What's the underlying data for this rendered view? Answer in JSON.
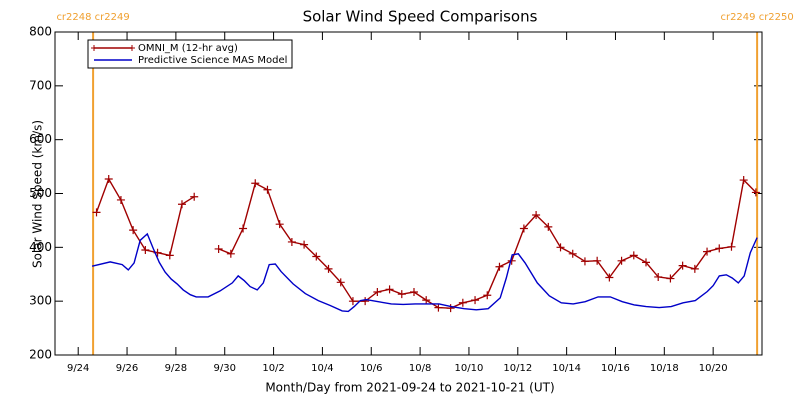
{
  "chart_data": {
    "type": "line",
    "title": "Solar Wind Speed Comparisons",
    "x_label": "Month/Day from 2021-09-24 to 2021-10-21 (UT)",
    "y_label": "Solar Wind Speed (km/s)",
    "xlim": [
      -0.95,
      28
    ],
    "xticks": [
      {
        "value": 0,
        "label": "9/24"
      },
      {
        "value": 2,
        "label": "9/26"
      },
      {
        "value": 4,
        "label": "9/28"
      },
      {
        "value": 6,
        "label": "9/30"
      },
      {
        "value": 8,
        "label": "10/2"
      },
      {
        "value": 10,
        "label": "10/4"
      },
      {
        "value": 12,
        "label": "10/6"
      },
      {
        "value": 14,
        "label": "10/8"
      },
      {
        "value": 16,
        "label": "10/10"
      },
      {
        "value": 18,
        "label": "10/12"
      },
      {
        "value": 20,
        "label": "10/14"
      },
      {
        "value": 22,
        "label": "10/16"
      },
      {
        "value": 24,
        "label": "10/18"
      },
      {
        "value": 26,
        "label": "10/20"
      }
    ],
    "ylim": [
      200,
      800
    ],
    "yticks": [
      200,
      300,
      400,
      500,
      600,
      700,
      800
    ],
    "legend": "upper left",
    "boundaries": [
      {
        "x": 0.61,
        "label": "cr2248 cr2249",
        "color": "#f0a030"
      },
      {
        "x": 27.8,
        "label": "cr2249 cr2250",
        "color": "#f0a030"
      }
    ],
    "series": [
      {
        "name": "OMNI_M (12-hr avg)",
        "color": "#a00000",
        "markers": true,
        "x": [
          0.75,
          1.25,
          1.75,
          2.25,
          2.75,
          3.25,
          3.75,
          4.25,
          4.75,
          5.25,
          5.75,
          6.25,
          6.75,
          7.25,
          7.75,
          8.25,
          8.75,
          9.25,
          9.75,
          10.25,
          10.75,
          11.25,
          11.75,
          12.25,
          12.75,
          13.25,
          13.75,
          14.25,
          14.75,
          15.25,
          15.75,
          16.25,
          16.75,
          17.25,
          17.75,
          18.25,
          18.75,
          19.25,
          19.75,
          20.25,
          20.75,
          21.25,
          21.75,
          22.25,
          22.75,
          23.25,
          23.75,
          24.25,
          24.75,
          25.25,
          25.75,
          26.25,
          26.75,
          27.25,
          27.75
        ],
        "values": [
          465,
          527,
          488,
          432,
          395,
          390,
          385,
          480,
          494,
          null,
          397,
          388,
          435,
          519,
          507,
          443,
          410,
          405,
          383,
          360,
          335,
          300,
          300,
          317,
          322,
          313,
          317,
          302,
          288,
          287,
          297,
          302,
          311,
          364,
          375,
          435,
          460,
          438,
          400,
          388,
          374,
          375,
          344,
          375,
          385,
          372,
          345,
          342,
          366,
          360,
          392,
          398,
          401,
          525,
          502
        ]
      },
      {
        "name": "Predictive Science MAS Model",
        "color": "#0000c8",
        "markers": false,
        "x": [
          0.57,
          1.31,
          1.8,
          2.05,
          2.29,
          2.54,
          2.83,
          3.07,
          3.32,
          3.56,
          3.81,
          4.05,
          4.3,
          4.59,
          4.83,
          5.32,
          5.81,
          6.31,
          6.55,
          6.8,
          7.04,
          7.33,
          7.58,
          7.82,
          8.07,
          8.31,
          8.8,
          9.3,
          9.83,
          10.32,
          10.81,
          11.06,
          11.3,
          11.55,
          11.79,
          12.29,
          12.82,
          13.31,
          13.8,
          14.29,
          14.78,
          15.27,
          15.81,
          16.3,
          16.79,
          17.28,
          17.53,
          17.77,
          18.02,
          18.3,
          18.8,
          19.29,
          19.78,
          20.27,
          20.76,
          21.29,
          21.79,
          22.28,
          22.77,
          23.26,
          23.79,
          24.28,
          24.77,
          25.27,
          25.76,
          26.0,
          26.25,
          26.54,
          26.78,
          27.03,
          27.27,
          27.52,
          27.8
        ],
        "values": [
          365,
          373,
          368,
          358,
          371,
          413,
          425,
          398,
          372,
          354,
          341,
          332,
          321,
          312,
          308,
          308,
          319,
          334,
          347,
          338,
          327,
          321,
          334,
          368,
          369,
          355,
          332,
          314,
          301,
          292,
          282,
          281,
          290,
          301,
          303,
          299,
          295,
          294,
          295,
          295,
          295,
          290,
          286,
          284,
          286,
          306,
          343,
          386,
          388,
          371,
          334,
          310,
          297,
          295,
          299,
          308,
          308,
          299,
          293,
          290,
          288,
          290,
          297,
          301,
          318,
          329,
          347,
          349,
          343,
          334,
          347,
          390,
          418
        ]
      }
    ]
  }
}
